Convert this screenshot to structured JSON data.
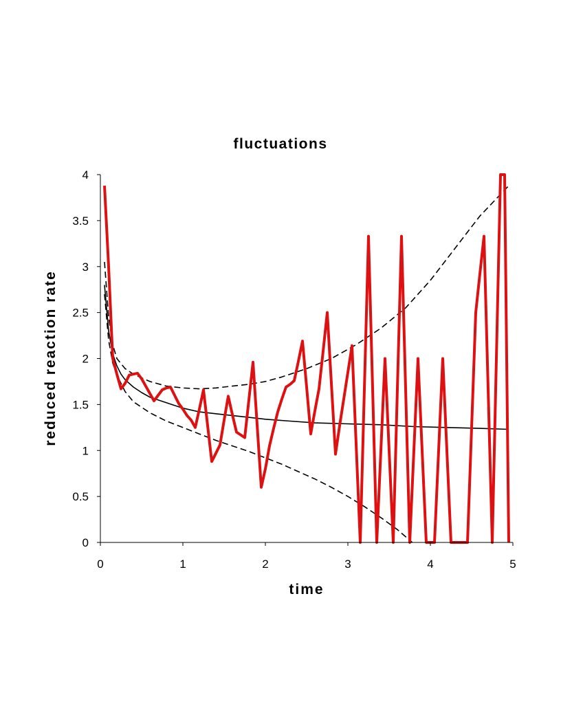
{
  "chart_data": {
    "type": "line",
    "title": "fluctuations",
    "xlabel": "time",
    "ylabel": "reduced reaction rate",
    "xlim": [
      0,
      5
    ],
    "ylim": [
      0,
      4
    ],
    "xticks": [
      "0",
      "1",
      "2",
      "3",
      "4",
      "5"
    ],
    "yticks": [
      "0",
      "0.5",
      "1",
      "1.5",
      "2",
      "2.5",
      "3",
      "3.5",
      "4"
    ],
    "grid": false,
    "legend": "none",
    "series": [
      {
        "style": "solid-red",
        "color": "#dd1111",
        "x": [
          0.05,
          0.1,
          0.15,
          0.2,
          0.25,
          0.3,
          0.35,
          0.4,
          0.45,
          0.5,
          0.55,
          0.6,
          0.65,
          0.7,
          0.75,
          0.8,
          0.85,
          0.9,
          0.95,
          1.0,
          1.05,
          1.1,
          1.15,
          1.2,
          1.25,
          1.3,
          1.35,
          1.4,
          1.45,
          1.5,
          1.55,
          1.6,
          1.65,
          1.7,
          1.75,
          1.8,
          1.85,
          1.9,
          1.95,
          2.0,
          2.05,
          2.1,
          2.15,
          2.2,
          2.25,
          2.3,
          2.35,
          2.4,
          2.45,
          2.5,
          2.55,
          2.6,
          2.65,
          2.7,
          2.75,
          2.8,
          2.85,
          2.9,
          2.95,
          3.0,
          3.05,
          3.1,
          3.15,
          3.2,
          3.25,
          3.3,
          3.35,
          3.4,
          3.45,
          3.5,
          3.55,
          3.6,
          3.65,
          3.7,
          3.75,
          3.8,
          3.85,
          3.9,
          3.95,
          4.0,
          4.05,
          4.1,
          4.15,
          4.2,
          4.25,
          4.3,
          4.35,
          4.4,
          4.45,
          4.5,
          4.55,
          4.6,
          4.65,
          4.7,
          4.75,
          4.8,
          4.85,
          4.9,
          4.95
        ],
        "y": [
          3.88,
          3.0,
          2.0,
          1.83,
          1.67,
          1.73,
          1.82,
          1.83,
          1.84,
          1.78,
          1.7,
          1.62,
          1.54,
          1.6,
          1.66,
          1.68,
          1.69,
          1.6,
          1.51,
          1.45,
          1.38,
          1.33,
          1.25,
          1.45,
          1.66,
          1.27,
          0.88,
          0.97,
          1.06,
          1.33,
          1.59,
          1.39,
          1.2,
          1.17,
          1.14,
          1.55,
          1.96,
          1.28,
          0.6,
          0.8,
          1.05,
          1.24,
          1.42,
          1.56,
          1.69,
          1.72,
          1.76,
          1.97,
          2.19,
          1.69,
          1.18,
          1.43,
          1.67,
          2.08,
          2.5,
          1.73,
          0.96,
          1.27,
          1.56,
          1.85,
          2.14,
          1.07,
          0.0,
          1.67,
          3.33,
          1.67,
          0.0,
          1.0,
          2.0,
          1.0,
          0.0,
          1.67,
          3.33,
          1.67,
          0.0,
          1.0,
          2.0,
          1.0,
          0.0,
          0.0,
          0.0,
          1.0,
          2.0,
          1.0,
          0.0,
          0.0,
          0.0,
          0.0,
          0.0,
          1.25,
          2.5,
          2.92,
          3.33,
          1.67,
          0.0,
          2.0,
          4.0,
          4.0,
          0.0
        ]
      },
      {
        "style": "solid-black",
        "color": "#000000",
        "x": [
          0.05,
          0.1,
          0.15,
          0.2,
          0.25,
          0.3,
          0.4,
          0.5,
          0.6,
          0.7,
          0.8,
          0.9,
          1.0,
          1.2,
          1.4,
          1.6,
          1.8,
          2.0,
          2.3,
          2.6,
          3.0,
          3.4,
          3.8,
          4.2,
          4.6,
          4.95
        ],
        "y": [
          2.8,
          2.3,
          2.05,
          1.92,
          1.83,
          1.77,
          1.69,
          1.63,
          1.58,
          1.55,
          1.52,
          1.49,
          1.46,
          1.42,
          1.4,
          1.38,
          1.36,
          1.34,
          1.32,
          1.3,
          1.29,
          1.28,
          1.26,
          1.25,
          1.24,
          1.23
        ]
      },
      {
        "style": "dashed-black",
        "color": "#000000",
        "x": [
          0.05,
          0.1,
          0.15,
          0.2,
          0.3,
          0.4,
          0.6,
          0.8,
          1.0,
          1.2,
          1.4,
          1.6,
          1.8,
          2.0,
          2.2,
          2.5,
          2.8,
          3.1,
          3.4,
          3.7,
          4.0,
          4.3,
          4.6,
          4.95
        ],
        "y": [
          3.05,
          2.45,
          2.15,
          2.0,
          1.89,
          1.83,
          1.75,
          1.7,
          1.68,
          1.67,
          1.68,
          1.7,
          1.72,
          1.75,
          1.8,
          1.89,
          2.0,
          2.15,
          2.33,
          2.55,
          2.85,
          3.2,
          3.55,
          3.88
        ]
      },
      {
        "style": "dashed-black",
        "color": "#000000",
        "x": [
          0.05,
          0.1,
          0.15,
          0.2,
          0.3,
          0.4,
          0.6,
          0.8,
          1.0,
          1.2,
          1.4,
          1.6,
          1.8,
          2.0,
          2.2,
          2.4,
          2.6,
          2.8,
          3.0,
          3.2,
          3.4,
          3.6,
          3.78
        ],
        "y": [
          2.7,
          2.2,
          1.95,
          1.82,
          1.64,
          1.53,
          1.41,
          1.32,
          1.25,
          1.18,
          1.11,
          1.05,
          0.99,
          0.92,
          0.85,
          0.77,
          0.69,
          0.6,
          0.5,
          0.39,
          0.27,
          0.14,
          0.0
        ]
      }
    ]
  }
}
